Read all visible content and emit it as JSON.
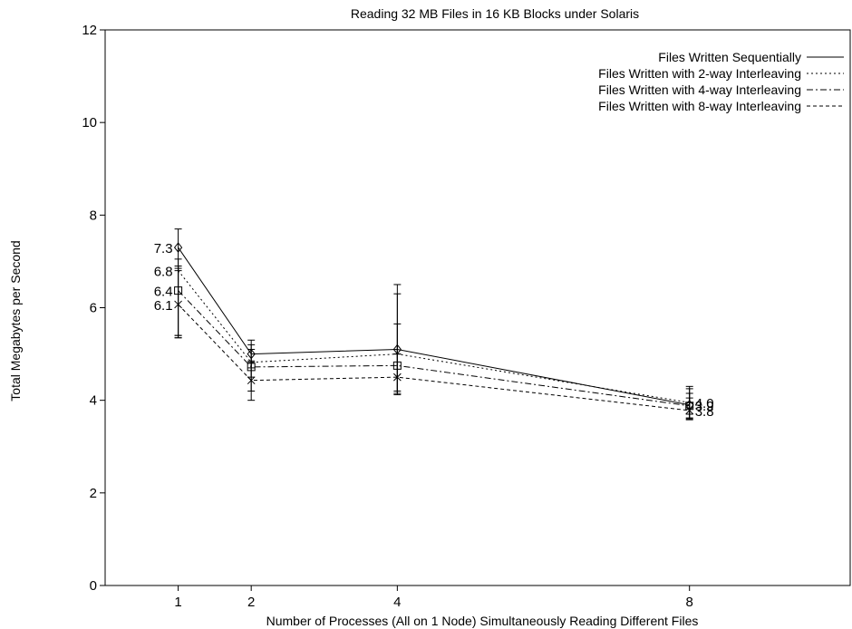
{
  "chart_data": {
    "type": "line",
    "title": "Reading 32 MB Files in 16 KB Blocks under Solaris",
    "xlabel": "Number of Processes (All on 1 Node) Simultaneously Reading Different Files",
    "ylabel": "Total Megabytes per Second",
    "x": [
      1,
      2,
      4,
      8
    ],
    "xticks": [
      1,
      2,
      4,
      8
    ],
    "yticks": [
      0,
      2,
      4,
      6,
      8,
      10,
      12
    ],
    "ylim": [
      0,
      12
    ],
    "grid": false,
    "legend_position": "top-right",
    "series": [
      {
        "name": "Files Written Sequentially",
        "dash": "solid",
        "marker": "diamond",
        "values": [
          7.3,
          5.0,
          5.1,
          3.9
        ],
        "err_low": [
          5.35,
          4.7,
          4.15,
          3.62
        ],
        "err_high": [
          7.7,
          5.3,
          6.5,
          4.25
        ],
        "labels": [
          "7.3",
          "",
          "",
          "3.9"
        ]
      },
      {
        "name": "Files Written with 2-way Interleaving",
        "dash": "dotted",
        "marker": "plus",
        "values": [
          6.8,
          4.82,
          5.0,
          3.95
        ],
        "err_low": [
          5.4,
          4.5,
          4.2,
          3.7
        ],
        "err_high": [
          7.05,
          5.2,
          6.3,
          4.3
        ],
        "labels": [
          "6.8",
          "",
          "",
          "4.0"
        ]
      },
      {
        "name": "Files Written with 4-way Interleaving",
        "dash": "dashdot",
        "marker": "square",
        "values": [
          6.37,
          4.72,
          4.75,
          3.88
        ],
        "err_low": [
          5.4,
          4.2,
          4.15,
          3.6
        ],
        "err_high": [
          6.9,
          5.1,
          5.65,
          4.15
        ],
        "labels": [
          "6.4",
          "",
          "",
          ""
        ]
      },
      {
        "name": "Files Written with 8-way Interleaving",
        "dash": "dashed",
        "marker": "cross",
        "values": [
          6.07,
          4.43,
          4.5,
          3.78
        ],
        "err_low": [
          5.35,
          4.0,
          4.12,
          3.58
        ],
        "err_high": [
          6.85,
          4.85,
          5.0,
          4.05
        ],
        "labels": [
          "6.1",
          "",
          "",
          "3.8"
        ]
      }
    ]
  }
}
